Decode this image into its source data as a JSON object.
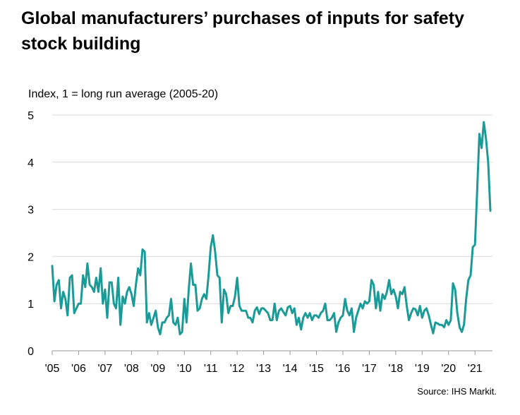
{
  "chart_data": {
    "type": "line",
    "title": "Global manufacturers’ purchases of inputs for safety stock building",
    "ylabel": "Index, 1 = long run average (2005-20)",
    "xlabel": "",
    "ylim": [
      0,
      5
    ],
    "yticks": [
      0,
      1,
      2,
      3,
      4,
      5
    ],
    "xticks": [
      "'05",
      "'06",
      "'07",
      "'08",
      "'09",
      "'10",
      "'11",
      "'12",
      "'13",
      "'14",
      "'15",
      "'16",
      "'17",
      "'18",
      "'19",
      "'20",
      "'21"
    ],
    "x_start": "2005-01",
    "x_frequency": "monthly",
    "grid": true,
    "line_color": "#1a9b97",
    "values": [
      1.8,
      1.05,
      1.4,
      1.5,
      0.9,
      1.25,
      1.1,
      0.75,
      1.55,
      1.6,
      0.8,
      0.9,
      1.0,
      1.0,
      1.6,
      1.35,
      1.85,
      1.4,
      1.35,
      1.25,
      1.55,
      1.25,
      1.75,
      1.0,
      1.3,
      0.7,
      1.45,
      1.45,
      1.0,
      0.9,
      1.55,
      0.55,
      1.15,
      1.0,
      1.25,
      1.35,
      1.2,
      0.95,
      1.4,
      1.75,
      1.6,
      2.15,
      2.1,
      0.6,
      0.8,
      0.55,
      0.7,
      0.85,
      0.5,
      0.35,
      0.6,
      0.6,
      0.7,
      0.75,
      1.1,
      0.6,
      0.55,
      0.7,
      0.35,
      0.4,
      1.1,
      0.6,
      1.3,
      1.85,
      1.4,
      1.4,
      0.85,
      0.9,
      1.1,
      1.2,
      1.1,
      1.6,
      2.2,
      2.45,
      2.1,
      1.6,
      1.55,
      0.6,
      1.3,
      1.2,
      0.8,
      0.95,
      0.95,
      1.15,
      1.55,
      0.95,
      0.85,
      0.85,
      0.85,
      0.7,
      0.7,
      0.6,
      0.85,
      0.92,
      0.78,
      0.9,
      0.9,
      0.85,
      0.8,
      0.65,
      0.65,
      1.0,
      0.65,
      0.85,
      0.9,
      0.82,
      0.75,
      0.92,
      0.95,
      0.8,
      0.9,
      0.55,
      0.7,
      0.45,
      0.7,
      0.8,
      0.7,
      0.8,
      0.65,
      0.75,
      0.75,
      0.7,
      0.8,
      0.85,
      1.0,
      0.65,
      0.65,
      0.7,
      0.8,
      0.4,
      0.6,
      0.7,
      0.75,
      1.1,
      0.85,
      0.75,
      0.9,
      0.4,
      0.7,
      0.85,
      1.0,
      0.9,
      1.05,
      1.0,
      1.05,
      1.5,
      1.4,
      0.9,
      1.25,
      0.85,
      1.2,
      1.1,
      1.25,
      1.5,
      1.2,
      1.3,
      1.15,
      0.9,
      1.25,
      1.2,
      1.35,
      0.95,
      0.65,
      0.8,
      0.9,
      0.88,
      0.75,
      0.95,
      0.7,
      0.85,
      0.9,
      0.75,
      0.55,
      0.37,
      0.6,
      0.58,
      0.55,
      0.55,
      0.5,
      0.65,
      0.55,
      0.65,
      1.43,
      1.3,
      0.8,
      0.5,
      0.4,
      0.55,
      1.1,
      1.5,
      1.6,
      2.2,
      2.25,
      3.4,
      4.6,
      4.3,
      4.85,
      4.5,
      4.0,
      2.97
    ],
    "source": "Source: IHS Markit."
  }
}
